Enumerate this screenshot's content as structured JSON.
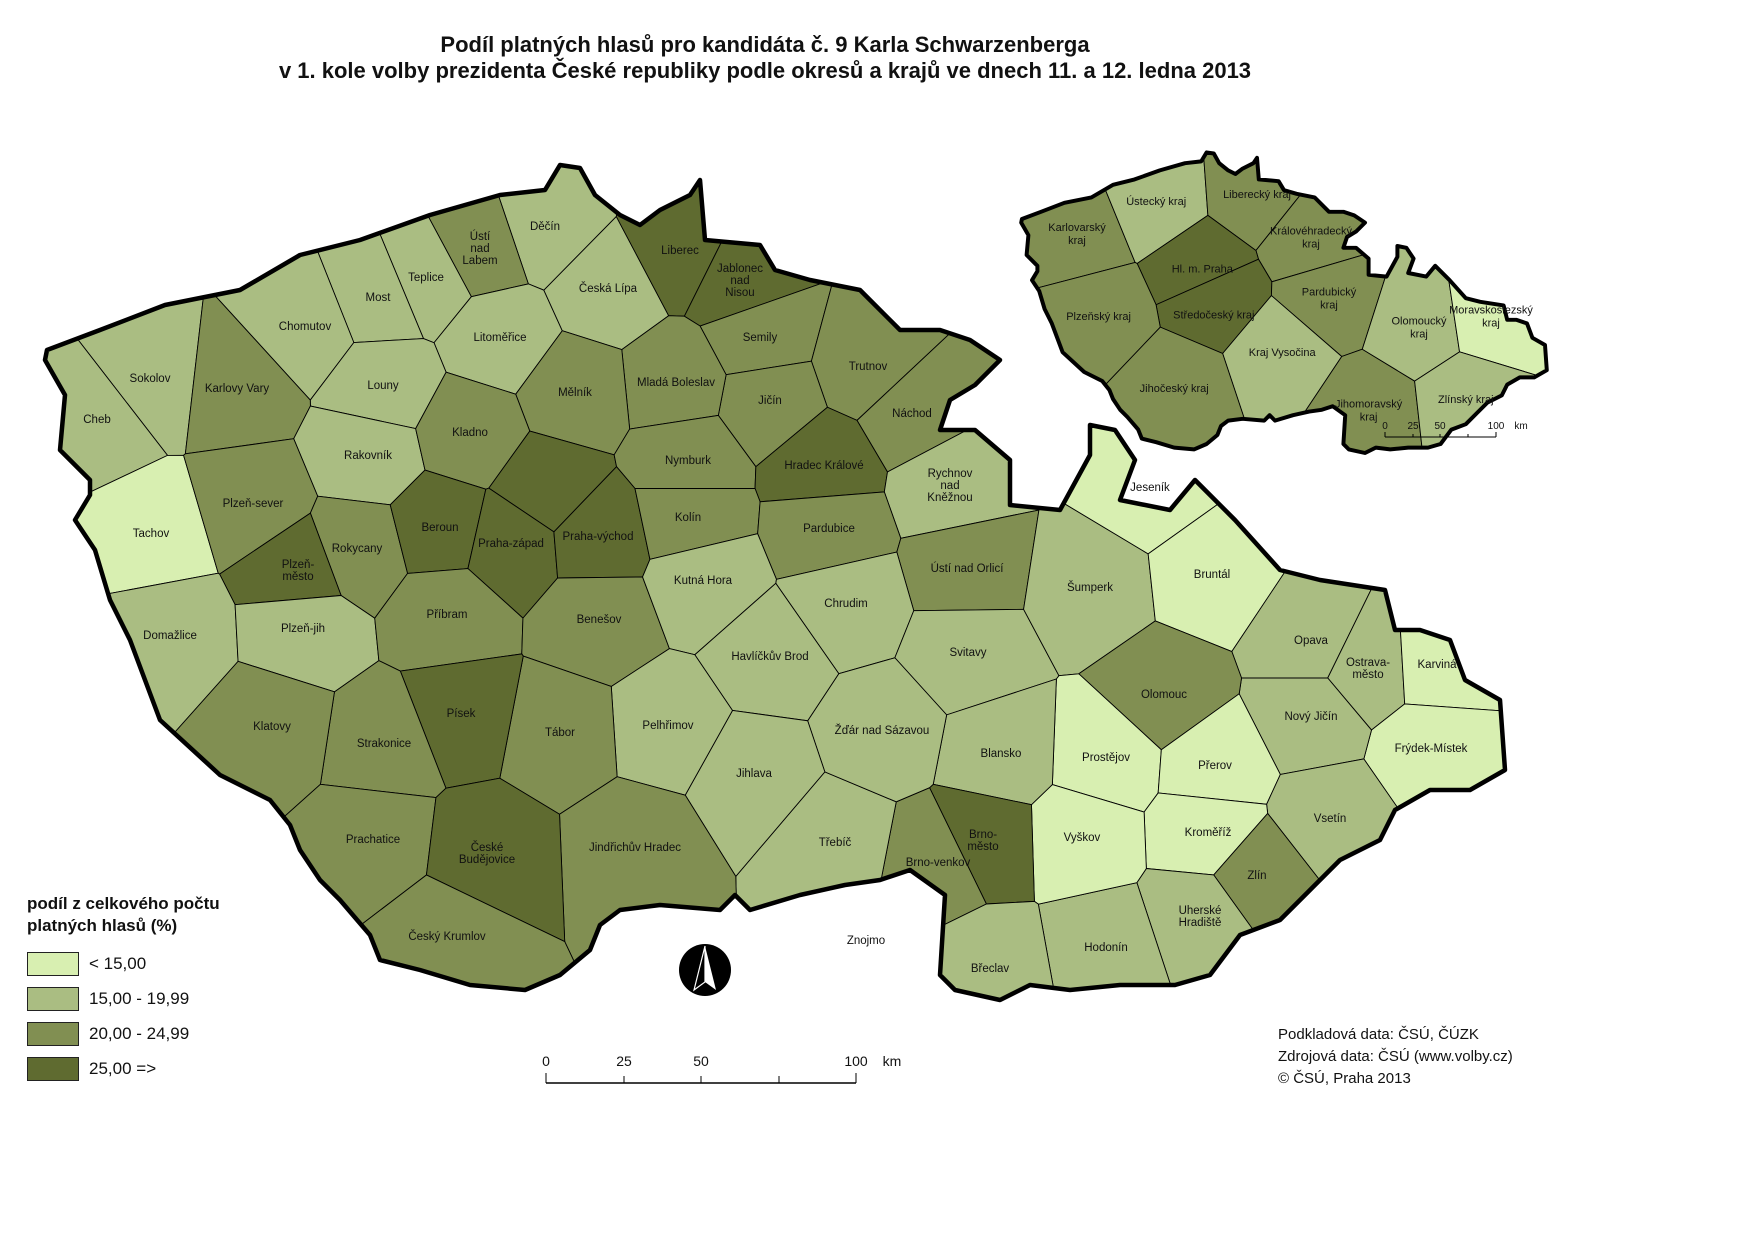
{
  "title": {
    "line1": "Podíl platných hlasů pro kandidáta č. 9 Karla Schwarzenberga",
    "line2": "v 1. kole volby prezidenta České republiky podle okresů a krajů ve dnech 11. a 12. ledna 2013"
  },
  "legend": {
    "title_line1": "podíl z celkového počtu",
    "title_line2": "platných hlasů (%)",
    "classes": [
      {
        "label": "< 15,00",
        "color": "#d8efb1"
      },
      {
        "label": "15,00 - 19,99",
        "color": "#aabd82"
      },
      {
        "label": "20,00 - 24,99",
        "color": "#818f52"
      },
      {
        "label": "25,00 =>",
        "color": "#5f6b30"
      }
    ]
  },
  "districts": [
    {
      "name": "Děčín",
      "class": 1
    },
    {
      "name": "Ústí nad Labem",
      "class": 2
    },
    {
      "name": "Teplice",
      "class": 1
    },
    {
      "name": "Most",
      "class": 1
    },
    {
      "name": "Chomutov",
      "class": 1
    },
    {
      "name": "Litoměřice",
      "class": 1
    },
    {
      "name": "Česká Lípa",
      "class": 1
    },
    {
      "name": "Liberec",
      "class": 3
    },
    {
      "name": "Jablonec nad Nisou",
      "class": 3
    },
    {
      "name": "Semily",
      "class": 2
    },
    {
      "name": "Trutnov",
      "class": 2
    },
    {
      "name": "Náchod",
      "class": 2
    },
    {
      "name": "Jičín",
      "class": 2
    },
    {
      "name": "Mladá Boleslav",
      "class": 2
    },
    {
      "name": "Mělník",
      "class": 2
    },
    {
      "name": "Louny",
      "class": 1
    },
    {
      "name": "Sokolov",
      "class": 1
    },
    {
      "name": "Karlovy Vary",
      "class": 2
    },
    {
      "name": "Cheb",
      "class": 1
    },
    {
      "name": "Rakovník",
      "class": 1
    },
    {
      "name": "Kladno",
      "class": 2
    },
    {
      "name": "",
      "class": 3
    },
    {
      "name": "Nymburk",
      "class": 2
    },
    {
      "name": "Hradec Králové",
      "class": 3
    },
    {
      "name": "Rychnov nad Kněžnou",
      "class": 1
    },
    {
      "name": "Tachov",
      "class": 0
    },
    {
      "name": "Plzeň-sever",
      "class": 2
    },
    {
      "name": "Rokycany",
      "class": 2
    },
    {
      "name": "Plzeň-město",
      "class": 3
    },
    {
      "name": "Beroun",
      "class": 3
    },
    {
      "name": "Praha-západ",
      "class": 3
    },
    {
      "name": "Praha-východ",
      "class": 3
    },
    {
      "name": "Kolín",
      "class": 2
    },
    {
      "name": "Pardubice",
      "class": 2
    },
    {
      "name": "Ústí nad Orlicí",
      "class": 2
    },
    {
      "name": "Domažlice",
      "class": 1
    },
    {
      "name": "Plzeň-jih",
      "class": 1
    },
    {
      "name": "Příbram",
      "class": 2
    },
    {
      "name": "Benešov",
      "class": 2
    },
    {
      "name": "Kutná Hora",
      "class": 1
    },
    {
      "name": "Chrudim",
      "class": 1
    },
    {
      "name": "Svitavy",
      "class": 1
    },
    {
      "name": "Šumperk",
      "class": 1
    },
    {
      "name": "Jeseník",
      "class": 0
    },
    {
      "name": "Bruntál",
      "class": 0
    },
    {
      "name": "Opava",
      "class": 1
    },
    {
      "name": "Ostrava-město",
      "class": 1
    },
    {
      "name": "Karviná",
      "class": 0
    },
    {
      "name": "Frýdek-Místek",
      "class": 0
    },
    {
      "name": "Nový Jičín",
      "class": 1
    },
    {
      "name": "Olomouc",
      "class": 2
    },
    {
      "name": "Prostějov",
      "class": 0
    },
    {
      "name": "Přerov",
      "class": 0
    },
    {
      "name": "Vsetín",
      "class": 1
    },
    {
      "name": "Kroměříž",
      "class": 0
    },
    {
      "name": "Zlín",
      "class": 2
    },
    {
      "name": "Uherské Hradiště",
      "class": 1
    },
    {
      "name": "Hodonín",
      "class": 1
    },
    {
      "name": "Vyškov",
      "class": 0
    },
    {
      "name": "Blansko",
      "class": 1
    },
    {
      "name": "Brno-město",
      "class": 3
    },
    {
      "name": "Brno-venkov",
      "class": 2
    },
    {
      "name": "Břeclav",
      "class": 1
    },
    {
      "name": "Znojmo",
      "class": 0
    },
    {
      "name": "Třebíč",
      "class": 1
    },
    {
      "name": "Žďár nad Sázavou",
      "class": 1
    },
    {
      "name": "Havlíčkův Brod",
      "class": 1
    },
    {
      "name": "Jihlava",
      "class": 1
    },
    {
      "name": "Pelhřimov",
      "class": 1
    },
    {
      "name": "Tábor",
      "class": 2
    },
    {
      "name": "Jindřichův Hradec",
      "class": 2
    },
    {
      "name": "Písek",
      "class": 3
    },
    {
      "name": "Strakonice",
      "class": 2
    },
    {
      "name": "Klatovy",
      "class": 2
    },
    {
      "name": "Prachatice",
      "class": 2
    },
    {
      "name": "České Budějovice",
      "class": 3
    },
    {
      "name": "Český Krumlov",
      "class": 2
    }
  ],
  "regions": [
    {
      "name": "Karlovarský kraj",
      "class": 2
    },
    {
      "name": "Ústecký kraj",
      "class": 1
    },
    {
      "name": "Liberecký kraj",
      "class": 2
    },
    {
      "name": "Královéhradecký kraj",
      "class": 2
    },
    {
      "name": "Hl. m. Praha",
      "class": 3
    },
    {
      "name": "Středočeský kraj",
      "class": 3
    },
    {
      "name": "Plzeňský kraj",
      "class": 2
    },
    {
      "name": "Pardubický kraj",
      "class": 2
    },
    {
      "name": "Kraj Vysočina",
      "class": 1
    },
    {
      "name": "Jihočeský kraj",
      "class": 2
    },
    {
      "name": "Jihomoravský kraj",
      "class": 2
    },
    {
      "name": "Olomoucký kraj",
      "class": 1
    },
    {
      "name": "Moravskoslezský kraj",
      "class": 0
    },
    {
      "name": "Zlínský kraj",
      "class": 1
    }
  ],
  "scale_main": {
    "ticks": [
      "0",
      "25",
      "50",
      "100"
    ],
    "unit": "km"
  },
  "scale_inset": {
    "ticks": [
      "0",
      "25",
      "50",
      "100"
    ],
    "unit": "km"
  },
  "north_arrow": "north-arrow-icon",
  "sources": {
    "line1": "Podkladová data: ČSÚ, ČÚZK",
    "line2": "Zdrojová data: ČSÚ (www.volby.cz)",
    "line3": "© ČSÚ, Praha 2013"
  }
}
